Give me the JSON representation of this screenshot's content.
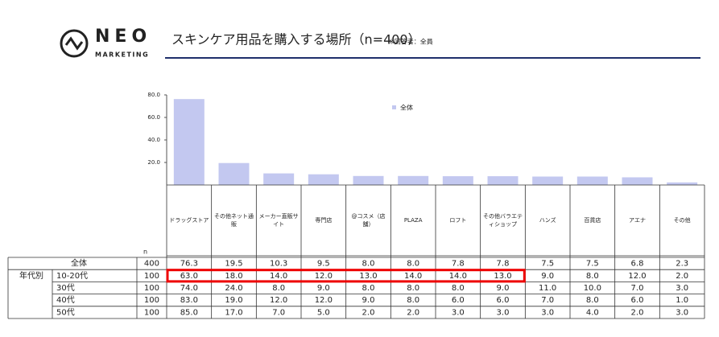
{
  "header": {
    "logo_main": "NEO",
    "logo_sub": "MARKETING",
    "title": "スキンケア用品を購入する場所（n=400）",
    "note": "※回答者：全員"
  },
  "chart_data": {
    "type": "bar",
    "categories": [
      "ドラッグストア",
      "その他ネット通販",
      "メーカー直販サイト",
      "専門店",
      "@コスメ（店舗）",
      "PLAZA",
      "ロフト",
      "その他バラエティショップ",
      "ハンズ",
      "百貨店",
      "アエナ",
      "その他"
    ],
    "series": [
      {
        "name": "全体",
        "color": "#c3c8f0",
        "values": [
          76.3,
          19.5,
          10.3,
          9.5,
          8.0,
          8.0,
          7.8,
          7.8,
          7.5,
          7.5,
          6.8,
          2.3
        ],
        "value_labels": [
          "76.3",
          "19.5",
          "10.3",
          "9.5",
          "8.0",
          "8.0",
          "7.8",
          "7.8",
          "7.5",
          "7.5",
          "6.8",
          "2.3"
        ]
      }
    ],
    "ylim": [
      0,
      80
    ],
    "yticks": [
      {
        "value": 20,
        "label": "20.0"
      },
      {
        "value": 40,
        "label": "40.0"
      },
      {
        "value": 60,
        "label": "60.0"
      },
      {
        "value": 80,
        "label": "80.0"
      }
    ]
  },
  "table": {
    "n_header": "n",
    "group_label": "年代別",
    "total_label": "全体",
    "total_n": 400,
    "rows": [
      {
        "label": "10-20代",
        "n": 100,
        "values": [
          "63.0",
          "18.0",
          "14.0",
          "12.0",
          "13.0",
          "14.0",
          "14.0",
          "13.0",
          "9.0",
          "8.0",
          "12.0",
          "2.0"
        ]
      },
      {
        "label": "30代",
        "n": 100,
        "values": [
          "74.0",
          "24.0",
          "8.0",
          "9.0",
          "8.0",
          "8.0",
          "8.0",
          "9.0",
          "11.0",
          "10.0",
          "7.0",
          "3.0"
        ]
      },
      {
        "label": "40代",
        "n": 100,
        "values": [
          "83.0",
          "19.0",
          "12.0",
          "12.0",
          "9.0",
          "8.0",
          "6.0",
          "6.0",
          "7.0",
          "8.0",
          "6.0",
          "1.0"
        ]
      },
      {
        "label": "50代",
        "n": 100,
        "values": [
          "85.0",
          "17.0",
          "7.0",
          "5.0",
          "2.0",
          "2.0",
          "3.0",
          "3.0",
          "3.0",
          "4.0",
          "2.0",
          "3.0"
        ]
      }
    ]
  }
}
